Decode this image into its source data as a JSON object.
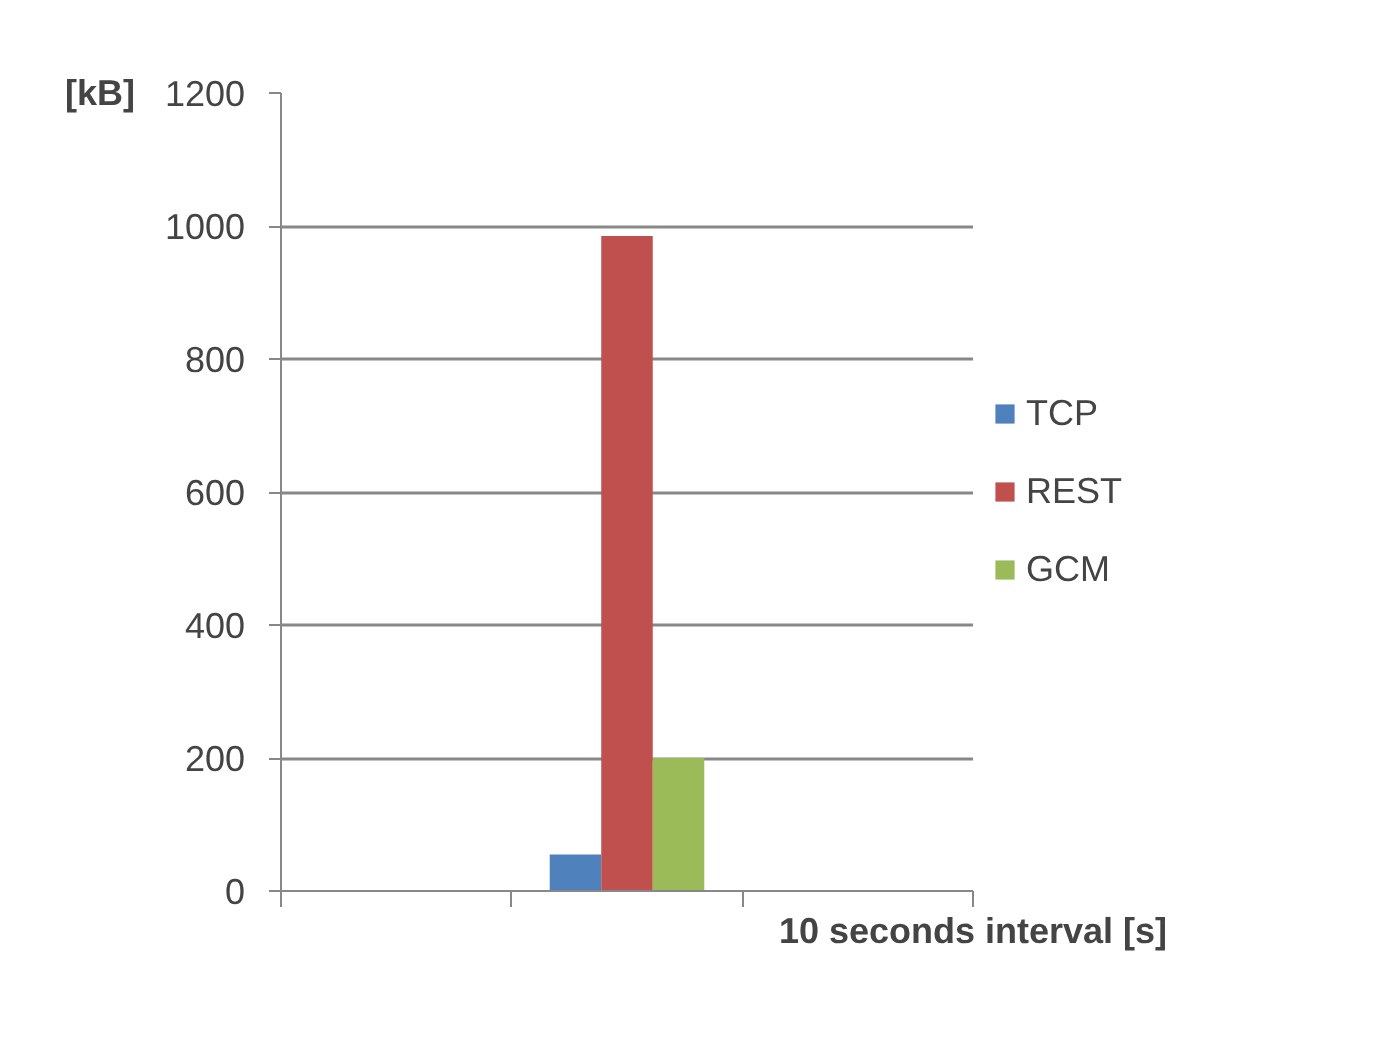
{
  "chart_data": {
    "type": "bar",
    "ylabel": "[kB]",
    "xlabel": "10 seconds interval [s]",
    "categories": [
      null,
      null,
      null
    ],
    "series": [
      {
        "name": "TCP",
        "color": "#4f81bd",
        "values": [
          0,
          55,
          0
        ]
      },
      {
        "name": "REST",
        "color": "#c0504d",
        "values": [
          0,
          985,
          0
        ]
      },
      {
        "name": "GCM",
        "color": "#9bbb59",
        "values": [
          0,
          200,
          0
        ]
      }
    ],
    "ylim": [
      0,
      1200
    ],
    "yticks": [
      0,
      200,
      400,
      600,
      800,
      1000,
      1200
    ],
    "grid": "y",
    "legend": "right"
  }
}
